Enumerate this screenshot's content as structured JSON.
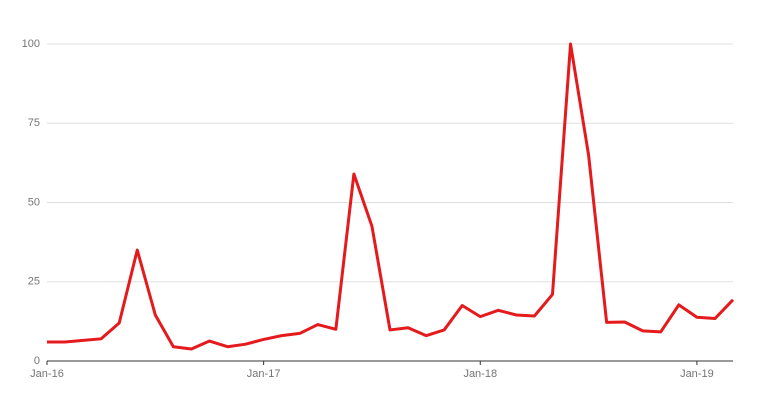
{
  "chart_data": {
    "type": "line",
    "categories": [
      "Jan-16",
      null,
      null,
      null,
      null,
      null,
      null,
      null,
      null,
      null,
      null,
      null,
      "Jan-17",
      null,
      null,
      null,
      null,
      null,
      null,
      null,
      null,
      null,
      null,
      null,
      "Jan-18",
      null,
      null,
      null,
      null,
      null,
      null,
      null,
      null,
      null,
      null,
      null,
      "Jan-19",
      null,
      null
    ],
    "series": [
      {
        "color": "#e41a1c",
        "values": [
          6,
          6,
          6.5,
          7,
          12,
          35,
          14.5,
          4.5,
          3.8,
          6.3,
          4.5,
          5.3,
          6.8,
          8,
          8.7,
          11.5,
          10,
          59,
          42.5,
          9.8,
          10.5,
          8,
          9.8,
          17.5,
          14,
          16,
          14.5,
          14.2,
          21,
          100,
          65,
          12.2,
          12.3,
          9.5,
          9.2,
          17.7,
          13.8,
          13.4,
          19.3
        ]
      }
    ],
    "ylim": [
      0,
      100
    ],
    "yticks": [
      0,
      25,
      50,
      75,
      100
    ],
    "grid": true
  }
}
